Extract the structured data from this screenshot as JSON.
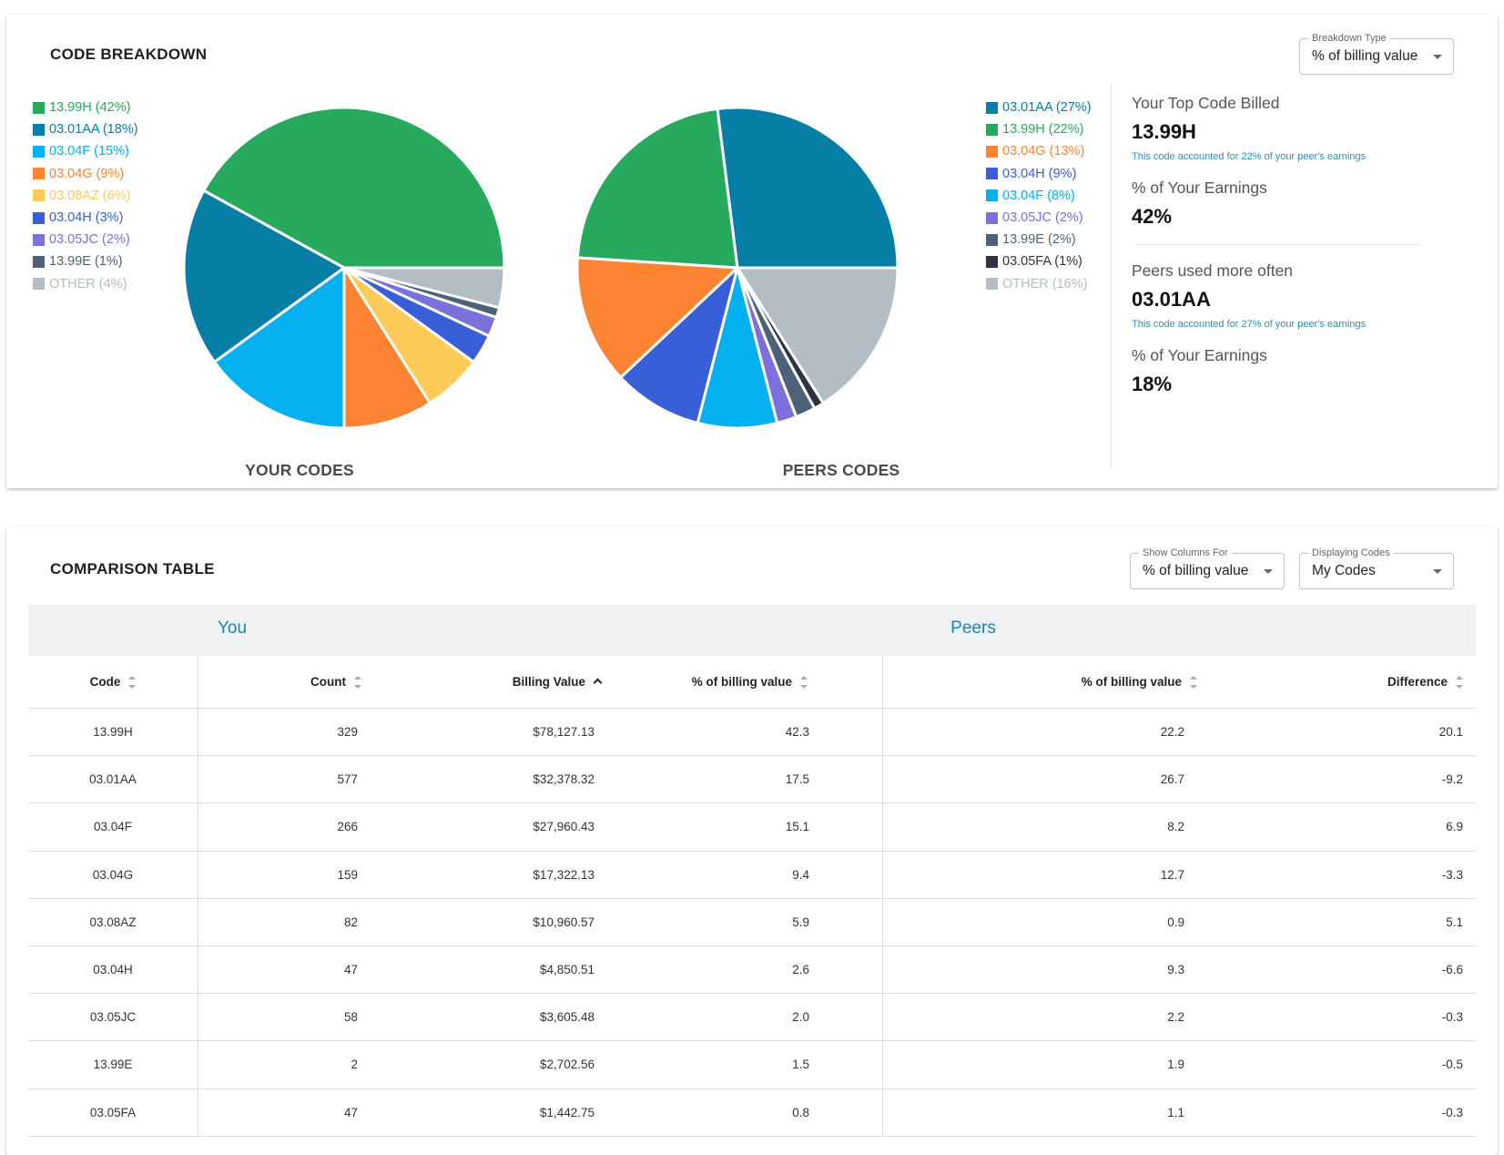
{
  "breakdown": {
    "title": "CODE BREAKDOWN",
    "select": {
      "label": "Breakdown Type",
      "value": "% of billing value"
    },
    "your_caption": "YOUR CODES",
    "peers_caption": "PEERS CODES"
  },
  "chart_data": [
    {
      "type": "pie",
      "title": "YOUR CODES",
      "slices": [
        {
          "label": "13.99H (42%)",
          "value": 42,
          "color": "#27aa5e"
        },
        {
          "label": "03.01AA (18%)",
          "value": 18,
          "color": "#067ea5"
        },
        {
          "label": "03.04F (15%)",
          "value": 15,
          "color": "#04b0ef"
        },
        {
          "label": "03.04G (9%)",
          "value": 9,
          "color": "#fb8331"
        },
        {
          "label": "03.08AZ (6%)",
          "value": 6,
          "color": "#fecb58"
        },
        {
          "label": "03.04H (3%)",
          "value": 3,
          "color": "#385fd7"
        },
        {
          "label": "03.05JC (2%)",
          "value": 2,
          "color": "#7b70dc"
        },
        {
          "label": "13.99E (1%)",
          "value": 1,
          "color": "#4b6279"
        },
        {
          "label": "OTHER (4%)",
          "value": 4,
          "color": "#b3bdc5"
        }
      ]
    },
    {
      "type": "pie",
      "title": "PEERS CODES",
      "slices": [
        {
          "label": "03.01AA (27%)",
          "value": 27,
          "color": "#067ea5"
        },
        {
          "label": "13.99H (22%)",
          "value": 22,
          "color": "#27aa5e"
        },
        {
          "label": "03.04G (13%)",
          "value": 13,
          "color": "#fb8331"
        },
        {
          "label": "03.04H (9%)",
          "value": 9,
          "color": "#385fd7"
        },
        {
          "label": "03.04F (8%)",
          "value": 8,
          "color": "#04b0ef"
        },
        {
          "label": "03.05JC (2%)",
          "value": 2,
          "color": "#7b70dc"
        },
        {
          "label": "13.99E (2%)",
          "value": 2,
          "color": "#4b6279"
        },
        {
          "label": "03.05FA (1%)",
          "value": 1,
          "color": "#2c3443"
        },
        {
          "label": "OTHER (16%)",
          "value": 16,
          "color": "#b3bdc5"
        }
      ]
    }
  ],
  "stats": {
    "top_code_label": "Your Top Code Billed",
    "top_code_value": "13.99H",
    "top_code_note": "This code accounted for 22% of your peer's earnings",
    "top_earn_label": "% of Your Earnings",
    "top_earn_value": "42%",
    "peers_label": "Peers used more often",
    "peers_value": "03.01AA",
    "peers_note": "This code accounted for 27% of your peer's earnings",
    "peers_earn_label": "% of Your Earnings",
    "peers_earn_value": "18%"
  },
  "comparison": {
    "title": "COMPARISON TABLE",
    "show_columns": {
      "label": "Show Columns For",
      "value": "% of billing value"
    },
    "displaying": {
      "label": "Displaying Codes",
      "value": "My Codes"
    },
    "group_you": "You",
    "group_peers": "Peers",
    "headers": [
      "Code",
      "Count",
      "Billing Value",
      "% of billing value",
      "% of billing value",
      "Difference"
    ],
    "rows": [
      [
        "13.99H",
        "329",
        "$78,127.13",
        "42.3",
        "22.2",
        "20.1"
      ],
      [
        "03.01AA",
        "577",
        "$32,378.32",
        "17.5",
        "26.7",
        "-9.2"
      ],
      [
        "03.04F",
        "266",
        "$27,960.43",
        "15.1",
        "8.2",
        "6.9"
      ],
      [
        "03.04G",
        "159",
        "$17,322.13",
        "9.4",
        "12.7",
        "-3.3"
      ],
      [
        "03.08AZ",
        "82",
        "$10,960.57",
        "5.9",
        "0.9",
        "5.1"
      ],
      [
        "03.04H",
        "47",
        "$4,850.51",
        "2.6",
        "9.3",
        "-6.6"
      ],
      [
        "03.05JC",
        "58",
        "$3,605.48",
        "2.0",
        "2.2",
        "-0.3"
      ],
      [
        "13.99E",
        "2",
        "$2,702.56",
        "1.5",
        "1.9",
        "-0.5"
      ],
      [
        "03.05FA",
        "47",
        "$1,442.75",
        "0.8",
        "1.1",
        "-0.3"
      ]
    ]
  }
}
